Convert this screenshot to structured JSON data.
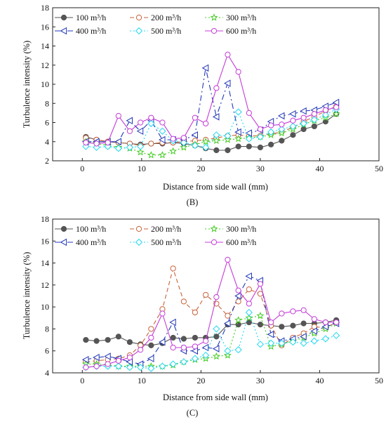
{
  "chart_data": [
    {
      "type": "line",
      "panel_label": "(B)",
      "xlabel": "Distance from side wall (mm)",
      "ylabel": "Turbulence intensity (%)",
      "xlim": [
        -5,
        50
      ],
      "ylim": [
        2,
        18
      ],
      "xticks": [
        "0",
        "10",
        "20",
        "30",
        "40",
        "50"
      ],
      "yticks": [
        "2",
        "4",
        "6",
        "8",
        "10",
        "12",
        "14",
        "16",
        "18"
      ],
      "grid": false,
      "legend_placement": "top-left",
      "series": [
        {
          "name": "100 m³/h",
          "color": "#555555",
          "dash": "solid",
          "marker": "circle",
          "x": [
            0.6,
            2.4,
            4.3,
            6.1,
            8,
            9.8,
            11.6,
            13.5,
            15.3,
            17.1,
            19,
            20.8,
            22.6,
            24.5,
            26.3,
            28.1,
            30,
            31.8,
            33.6,
            35.5,
            37.3,
            39.1,
            41,
            42.8
          ],
          "y": [
            4.5,
            4.2,
            4.0,
            3.9,
            3.8,
            3.7,
            3.8,
            3.8,
            3.9,
            3.8,
            3.6,
            3.3,
            3.1,
            3.1,
            3.5,
            3.5,
            3.4,
            3.7,
            4.1,
            4.7,
            5.3,
            5.6,
            6.1,
            6.9
          ]
        },
        {
          "name": "200 m³/h",
          "color": "#c8623a",
          "dash": "6,4",
          "marker": "circle-open",
          "x": [
            0.6,
            2.4,
            4.3,
            6.1,
            8,
            9.8,
            11.6,
            13.5,
            15.3,
            17.1,
            19,
            20.8,
            22.6,
            24.5,
            26.3,
            28.1,
            30,
            31.8,
            33.6,
            35.5,
            37.3,
            39.1,
            41,
            42.8
          ],
          "y": [
            4.4,
            4.2,
            4.0,
            3.9,
            3.8,
            3.6,
            3.8,
            3.9,
            3.9,
            4.0,
            4.1,
            4.2,
            4.4,
            4.6,
            4.7,
            4.6,
            4.6,
            4.8,
            5.0,
            5.5,
            6.1,
            6.6,
            7.2,
            7.7
          ]
        },
        {
          "name": "300 m³/h",
          "color": "#44cc22",
          "dash": "2,3",
          "marker": "star",
          "x": [
            0.6,
            2.4,
            4.3,
            6.1,
            8,
            9.8,
            11.6,
            13.5,
            15.3,
            17.1,
            19,
            20.8,
            22.6,
            24.5,
            26.3,
            28.1,
            30,
            31.8,
            33.6,
            35.5,
            37.3,
            39.1,
            41,
            42.8
          ],
          "y": [
            4.0,
            3.8,
            3.6,
            3.4,
            3.3,
            2.9,
            2.6,
            2.6,
            3.0,
            3.4,
            3.7,
            4.0,
            4.1,
            4.2,
            4.3,
            4.4,
            4.5,
            4.7,
            4.9,
            5.3,
            5.8,
            6.2,
            6.5,
            6.9
          ]
        },
        {
          "name": "400 m³/h",
          "color": "#2238b8",
          "dash": "8,4,2,4",
          "marker": "triangle-left",
          "x": [
            0.6,
            2.4,
            4.3,
            6.1,
            8,
            9.8,
            11.6,
            13.5,
            15.3,
            17.1,
            19,
            20.8,
            22.6,
            24.5,
            26.3,
            28.1,
            30,
            31.8,
            33.6,
            35.5,
            37.3,
            39.1,
            41,
            42.8
          ],
          "y": [
            4.0,
            4.0,
            4.0,
            4.0,
            6.2,
            5.1,
            6.2,
            4.2,
            4.2,
            4.2,
            4.7,
            11.7,
            6.6,
            10.1,
            5.0,
            4.9,
            5.2,
            6.1,
            6.7,
            6.9,
            7.2,
            7.3,
            7.7,
            8.1
          ]
        },
        {
          "name": "500 m³/h",
          "color": "#22d8f0",
          "dash": "2,3",
          "marker": "diamond",
          "x": [
            0.6,
            2.4,
            4.3,
            6.1,
            8,
            9.8,
            11.6,
            13.5,
            15.3,
            17.1,
            19,
            20.8,
            22.6,
            24.5,
            26.3,
            28.1,
            30,
            31.8,
            33.6,
            35.5,
            37.3,
            39.1,
            41,
            42.8
          ],
          "y": [
            3.5,
            3.4,
            3.5,
            3.3,
            3.4,
            3.5,
            5.9,
            5.1,
            4.1,
            3.9,
            3.6,
            3.4,
            4.7,
            4.6,
            7.1,
            4.3,
            4.5,
            5.0,
            5.3,
            5.6,
            5.9,
            6.3,
            6.8,
            7.4
          ]
        },
        {
          "name": "600 m³/h",
          "color": "#c43cd8",
          "dash": "solid",
          "marker": "circle-open",
          "x": [
            0.6,
            2.4,
            4.3,
            6.1,
            8,
            9.8,
            11.6,
            13.5,
            15.3,
            17.1,
            19,
            20.8,
            22.6,
            24.5,
            26.3,
            28.1,
            30,
            31.8,
            33.6,
            35.5,
            37.3,
            39.1,
            41,
            42.8
          ],
          "y": [
            3.9,
            3.8,
            3.9,
            6.7,
            5.1,
            6.0,
            6.5,
            6.0,
            4.3,
            4.4,
            6.5,
            5.9,
            9.6,
            13.1,
            11.3,
            7.0,
            5.3,
            5.7,
            5.8,
            6.2,
            6.5,
            6.9,
            7.3,
            7.6
          ]
        }
      ]
    },
    {
      "type": "line",
      "panel_label": "(C)",
      "xlabel": "Distance from side wall (mm)",
      "ylabel": "Turbulence intensity (%)",
      "xlim": [
        -5,
        50
      ],
      "ylim": [
        4,
        18
      ],
      "xticks": [
        "0",
        "10",
        "20",
        "30",
        "40",
        "50"
      ],
      "yticks": [
        "4",
        "6",
        "8",
        "10",
        "12",
        "14",
        "16",
        "18"
      ],
      "grid": false,
      "legend_placement": "top-left",
      "series": [
        {
          "name": "100 m³/h",
          "color": "#555555",
          "dash": "solid",
          "marker": "circle",
          "x": [
            0.6,
            2.4,
            4.3,
            6.1,
            8,
            9.8,
            11.6,
            13.5,
            15.3,
            17.1,
            19,
            20.8,
            22.6,
            24.5,
            26.3,
            28.1,
            30,
            31.8,
            33.6,
            35.5,
            37.3,
            39.1,
            41,
            42.8
          ],
          "y": [
            7.0,
            6.9,
            7.0,
            7.3,
            6.8,
            6.6,
            6.5,
            6.7,
            7.2,
            7.1,
            7.2,
            7.2,
            7.3,
            8.4,
            8.4,
            8.6,
            8.4,
            8.3,
            8.2,
            8.3,
            8.5,
            8.5,
            8.6,
            8.8
          ]
        },
        {
          "name": "200 m³/h",
          "color": "#c8623a",
          "dash": "6,4",
          "marker": "circle-open",
          "x": [
            0.6,
            2.4,
            4.3,
            6.1,
            8,
            9.8,
            11.6,
            13.5,
            15.3,
            17.1,
            19,
            20.8,
            22.6,
            24.5,
            26.3,
            28.1,
            30,
            31.8,
            33.6,
            35.5,
            37.3,
            39.1,
            41,
            42.8
          ],
          "y": [
            5.0,
            5.1,
            5.2,
            5.3,
            5.6,
            6.5,
            8.0,
            9.8,
            13.5,
            10.5,
            9.5,
            11.1,
            10.3,
            9.2,
            10.5,
            11.6,
            11.2,
            8.3,
            6.5,
            7.2,
            7.6,
            8.2,
            8.1,
            8.6
          ]
        },
        {
          "name": "300 m³/h",
          "color": "#44cc22",
          "dash": "2,3",
          "marker": "star",
          "x": [
            0.6,
            2.4,
            4.3,
            6.1,
            8,
            9.8,
            11.6,
            13.5,
            15.3,
            17.1,
            19,
            20.8,
            22.6,
            24.5,
            26.3,
            28.1,
            30,
            31.8,
            33.6,
            35.5,
            37.3,
            39.1,
            41,
            42.8
          ],
          "y": [
            4.8,
            4.8,
            4.7,
            4.6,
            4.6,
            4.6,
            4.6,
            4.6,
            4.7,
            5.0,
            5.2,
            5.3,
            5.5,
            5.6,
            8.8,
            9.0,
            9.2,
            6.4,
            6.6,
            6.9,
            7.2,
            7.6,
            8.0,
            8.5
          ]
        },
        {
          "name": "400 m³/h",
          "color": "#2238b8",
          "dash": "8,4,2,4",
          "marker": "triangle-left",
          "x": [
            0.6,
            2.4,
            4.3,
            6.1,
            8,
            9.8,
            11.6,
            13.5,
            15.3,
            17.1,
            19,
            20.8,
            22.6,
            24.5,
            26.3,
            28.1,
            30,
            31.8,
            33.6,
            35.5,
            37.3,
            39.1,
            41,
            42.8
          ],
          "y": [
            5.2,
            5.4,
            5.5,
            5.3,
            5.0,
            4.8,
            5.3,
            6.8,
            8.6,
            6.0,
            6.0,
            6.3,
            6.2,
            8.5,
            11.0,
            12.8,
            12.4,
            7.5,
            6.9,
            7.1,
            7.3,
            7.8,
            8.2,
            8.5
          ]
        },
        {
          "name": "500 m³/h",
          "color": "#22d8f0",
          "dash": "2,3",
          "marker": "diamond",
          "x": [
            0.6,
            2.4,
            4.3,
            6.1,
            8,
            9.8,
            11.6,
            13.5,
            15.3,
            17.1,
            19,
            20.8,
            22.6,
            24.5,
            26.3,
            28.1,
            30,
            31.8,
            33.6,
            35.5,
            37.3,
            39.1,
            41,
            42.8
          ],
          "y": [
            4.5,
            4.6,
            4.6,
            4.6,
            4.5,
            4.5,
            4.4,
            4.6,
            4.8,
            5.0,
            5.3,
            5.6,
            8.0,
            6.0,
            6.1,
            9.5,
            6.6,
            6.7,
            6.7,
            6.8,
            6.7,
            6.9,
            7.1,
            7.4
          ]
        },
        {
          "name": "600 m³/h",
          "color": "#c43cd8",
          "dash": "solid",
          "marker": "circle-open",
          "x": [
            0.6,
            2.4,
            4.3,
            6.1,
            8,
            9.8,
            11.6,
            13.5,
            15.3,
            17.1,
            19,
            20.8,
            22.6,
            24.5,
            26.3,
            28.1,
            30,
            31.8,
            33.6,
            35.5,
            37.3,
            39.1,
            41,
            42.8
          ],
          "y": [
            4.5,
            4.6,
            4.8,
            5.1,
            5.4,
            6.1,
            7.2,
            9.4,
            6.3,
            6.3,
            6.4,
            6.9,
            10.9,
            14.3,
            11.5,
            10.3,
            12.1,
            8.6,
            9.4,
            9.6,
            9.7,
            8.9,
            8.6,
            8.6
          ]
        }
      ]
    }
  ]
}
